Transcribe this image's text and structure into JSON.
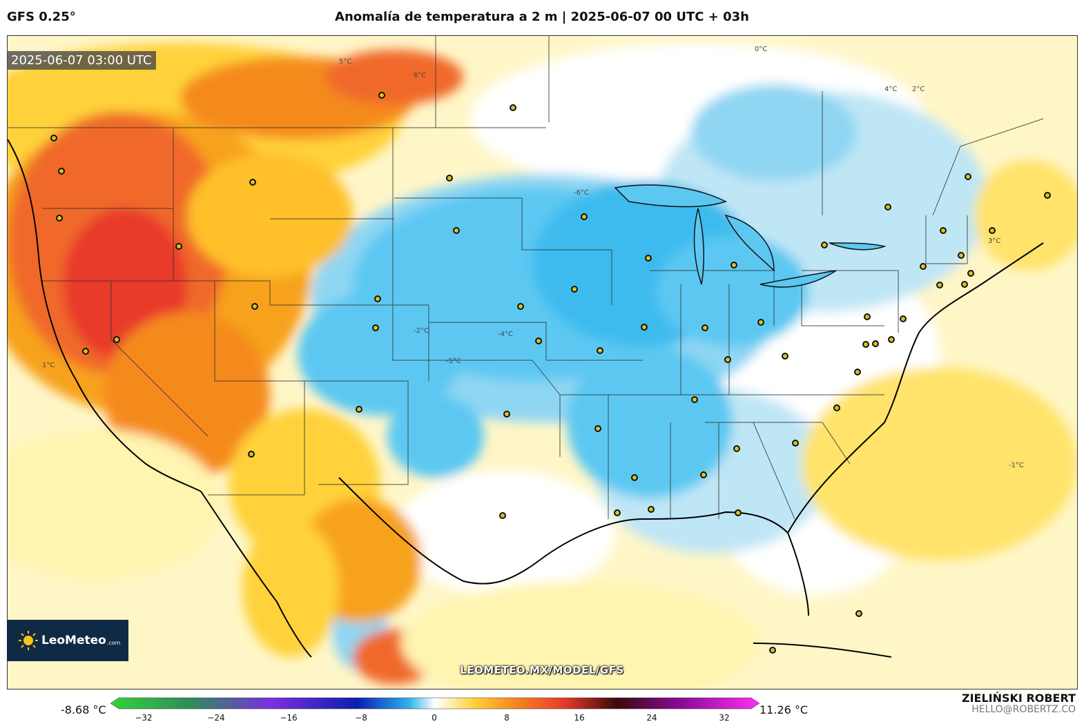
{
  "header": {
    "model": "GFS 0.25°",
    "title": "Anomalía de temperatura a 2 m | 2025-06-07 00 UTC + 03h"
  },
  "map": {
    "timestamp": "2025-06-07 03:00 UTC",
    "watermark": "LEOMETEO.MX/MODEL/GFS",
    "contour_labels": [
      "6°C",
      "4°C",
      "2°C",
      "0°C",
      "-2°C",
      "-4°C",
      "-5°C",
      "5°C",
      "1°C",
      "-1°C",
      "-6°C",
      "3°C"
    ],
    "colors": {
      "hot_strong": "#e83a2a",
      "hot": "#f58a1f",
      "warm": "#ffd23a",
      "mild": "#fff4b0",
      "cool": "#bfe6f5",
      "cold": "#5cc8f2",
      "cold_strong": "#2fb2ec"
    }
  },
  "logo": {
    "name": "LeoMeteo",
    "suffix": ".com"
  },
  "legend": {
    "min_label": "-8.68 °C",
    "max_label": "11.26 °C",
    "ticks": [
      "−32",
      "−24",
      "−16",
      "−8",
      "0",
      "8",
      "16",
      "24",
      "32"
    ]
  },
  "author": {
    "name": "ZIELIŃSKI ROBERT",
    "email": "HELLO@ROBERTZ.CO"
  }
}
